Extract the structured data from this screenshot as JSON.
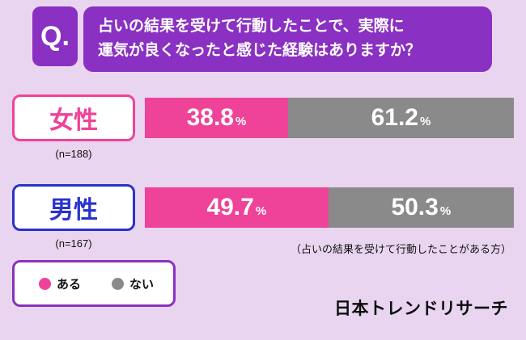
{
  "question": {
    "q_label": "Q.",
    "line1": "占いの結果を受けて行動したことで、実際に",
    "line2": "運気が良くなったと感じた経験はありますか？"
  },
  "chart_data": {
    "type": "bar",
    "orientation": "horizontal",
    "stacked": true,
    "title": "占いの結果を受けて行動したことで、実際に運気が良くなったと感じた経験はありますか？",
    "categories": [
      "女性",
      "男性"
    ],
    "sample_sizes": [
      "n=188",
      "n=167"
    ],
    "unit": "%",
    "series": [
      {
        "name": "ある",
        "color": "#ef4299",
        "values": [
          38.8,
          49.7
        ]
      },
      {
        "name": "ない",
        "color": "#8a8a8a",
        "values": [
          61.2,
          50.3
        ]
      }
    ],
    "xlim": [
      0,
      100
    ],
    "note": "（占いの結果を受けて行動したことがある方）",
    "legend_position": "bottom-left"
  },
  "rows": [
    {
      "label": "女性",
      "n": "(n=188)"
    },
    {
      "label": "男性",
      "n": "(n=167)"
    }
  ],
  "footer": {
    "logo": "日本トレンドリサーチ"
  },
  "colors": {
    "background": "#e9d5f0",
    "purple": "#8a30c2",
    "pink": "#ef4299",
    "gray": "#8a8a8a",
    "blue": "#2a32cc"
  }
}
